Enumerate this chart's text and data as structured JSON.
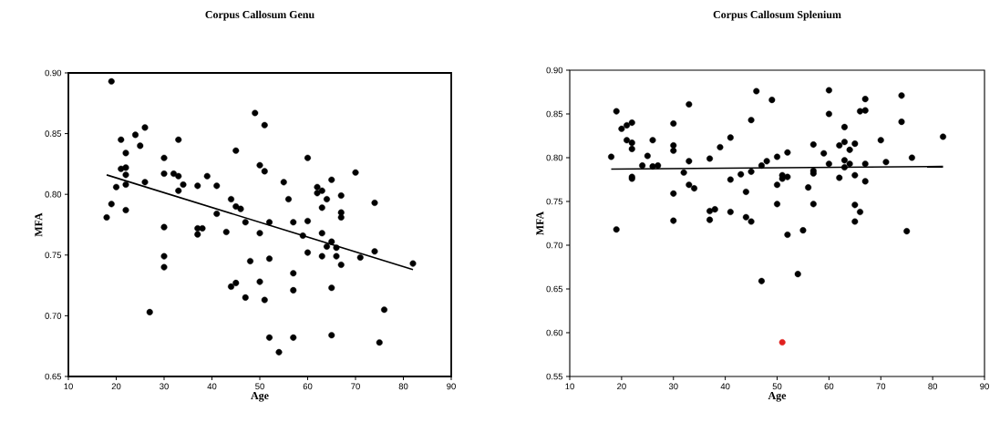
{
  "chart_data": [
    {
      "type": "scatter",
      "title": "Corpus Callosum Genu",
      "xlabel": "Age",
      "ylabel": "MFA",
      "xlim": [
        10,
        90
      ],
      "ylim": [
        0.65,
        0.9
      ],
      "xticks": [
        10,
        20,
        30,
        40,
        50,
        60,
        70,
        80,
        90
      ],
      "yticks": [
        {
          "value": 0.65,
          "label": "0.65"
        },
        {
          "value": 0.7,
          "label": "0.70"
        },
        {
          "value": 0.75,
          "label": "0.75"
        },
        {
          "value": 0.8,
          "label": "0.80"
        },
        {
          "value": 0.85,
          "label": "0.85"
        },
        {
          "value": 0.9,
          "label": "0.90"
        }
      ],
      "series": [
        {
          "type": "scatter",
          "marker": "circle",
          "color": "#000000",
          "x": [
            18,
            19,
            19,
            20,
            21,
            21,
            22,
            22,
            22,
            22,
            22,
            24,
            25,
            26,
            26,
            27,
            30,
            30,
            30,
            30,
            30,
            32,
            33,
            33,
            33,
            34,
            37,
            37,
            37,
            38,
            39,
            41,
            41,
            43,
            44,
            44,
            45,
            45,
            45,
            46,
            47,
            47,
            48,
            49,
            50,
            50,
            50,
            51,
            51,
            51,
            52,
            52,
            52,
            54,
            55,
            56,
            57,
            57,
            57,
            57,
            59,
            60,
            60,
            60,
            62,
            62,
            63,
            63,
            63,
            63,
            64,
            64,
            65,
            65,
            65,
            65,
            66,
            66,
            67,
            67,
            67,
            67,
            70,
            71,
            74,
            74,
            75,
            76,
            82
          ],
          "values": [
            0.781,
            0.893,
            0.792,
            0.806,
            0.845,
            0.821,
            0.834,
            0.822,
            0.816,
            0.808,
            0.787,
            0.849,
            0.84,
            0.855,
            0.81,
            0.703,
            0.83,
            0.817,
            0.773,
            0.749,
            0.74,
            0.817,
            0.815,
            0.845,
            0.803,
            0.808,
            0.807,
            0.772,
            0.767,
            0.772,
            0.815,
            0.807,
            0.784,
            0.769,
            0.796,
            0.724,
            0.79,
            0.836,
            0.727,
            0.788,
            0.777,
            0.715,
            0.745,
            0.867,
            0.824,
            0.768,
            0.728,
            0.857,
            0.819,
            0.713,
            0.777,
            0.747,
            0.682,
            0.67,
            0.81,
            0.796,
            0.777,
            0.735,
            0.721,
            0.682,
            0.766,
            0.83,
            0.778,
            0.752,
            0.806,
            0.801,
            0.803,
            0.789,
            0.768,
            0.749,
            0.796,
            0.757,
            0.812,
            0.761,
            0.723,
            0.684,
            0.756,
            0.749,
            0.799,
            0.785,
            0.781,
            0.742,
            0.818,
            0.748,
            0.793,
            0.753,
            0.678,
            0.705,
            0.743
          ]
        },
        {
          "type": "line",
          "color": "#000000",
          "x": [
            18,
            82
          ],
          "values": [
            0.816,
            0.738
          ]
        }
      ]
    },
    {
      "type": "scatter",
      "title": "Corpus Callosum Splenium",
      "xlabel": "Age",
      "ylabel": "MFA",
      "xlim": [
        10,
        90
      ],
      "ylim": [
        0.55,
        0.9
      ],
      "xticks": [
        10,
        20,
        30,
        40,
        50,
        60,
        70,
        80,
        90
      ],
      "yticks": [
        {
          "value": 0.55,
          "label": "0.55"
        },
        {
          "value": 0.6,
          "label": "0.60"
        },
        {
          "value": 0.65,
          "label": "0.65"
        },
        {
          "value": 0.7,
          "label": "0.70"
        },
        {
          "value": 0.75,
          "label": "0.75"
        },
        {
          "value": 0.8,
          "label": "0.80"
        },
        {
          "value": 0.85,
          "label": "0.85"
        },
        {
          "value": 0.9,
          "label": "0.90"
        }
      ],
      "series": [
        {
          "type": "scatter",
          "marker": "circle",
          "color": "#000000",
          "x": [
            18,
            19,
            19,
            20,
            21,
            21,
            22,
            22,
            22,
            22,
            22,
            24,
            25,
            26,
            26,
            27,
            30,
            30,
            30,
            30,
            30,
            32,
            33,
            33,
            33,
            34,
            37,
            37,
            37,
            38,
            39,
            41,
            41,
            41,
            43,
            44,
            44,
            45,
            45,
            45,
            46,
            47,
            47,
            48,
            49,
            50,
            50,
            50,
            51,
            51,
            52,
            52,
            52,
            54,
            55,
            56,
            57,
            57,
            57,
            57,
            59,
            60,
            60,
            60,
            62,
            62,
            63,
            63,
            63,
            63,
            64,
            64,
            65,
            65,
            65,
            65,
            66,
            66,
            67,
            67,
            67,
            67,
            70,
            71,
            74,
            74,
            75,
            76,
            82
          ],
          "values": [
            0.801,
            0.853,
            0.718,
            0.833,
            0.837,
            0.82,
            0.84,
            0.817,
            0.81,
            0.778,
            0.776,
            0.791,
            0.802,
            0.82,
            0.79,
            0.791,
            0.839,
            0.814,
            0.808,
            0.759,
            0.728,
            0.783,
            0.861,
            0.796,
            0.769,
            0.765,
            0.799,
            0.739,
            0.729,
            0.741,
            0.812,
            0.823,
            0.775,
            0.738,
            0.781,
            0.761,
            0.732,
            0.843,
            0.784,
            0.727,
            0.876,
            0.659,
            0.791,
            0.796,
            0.866,
            0.801,
            0.769,
            0.747,
            0.776,
            0.78,
            0.806,
            0.778,
            0.712,
            0.667,
            0.717,
            0.766,
            0.815,
            0.785,
            0.782,
            0.747,
            0.805,
            0.877,
            0.85,
            0.793,
            0.814,
            0.777,
            0.835,
            0.818,
            0.797,
            0.789,
            0.809,
            0.793,
            0.816,
            0.78,
            0.746,
            0.727,
            0.853,
            0.738,
            0.867,
            0.854,
            0.793,
            0.773,
            0.82,
            0.795,
            0.871,
            0.841,
            0.716,
            0.8,
            0.824
          ]
        },
        {
          "type": "scatter",
          "marker": "circle",
          "color": "#e0201e",
          "x": [
            51
          ],
          "values": [
            0.589
          ]
        },
        {
          "type": "line",
          "color": "#000000",
          "x": [
            18,
            82
          ],
          "values": [
            0.787,
            0.79
          ]
        }
      ]
    }
  ]
}
